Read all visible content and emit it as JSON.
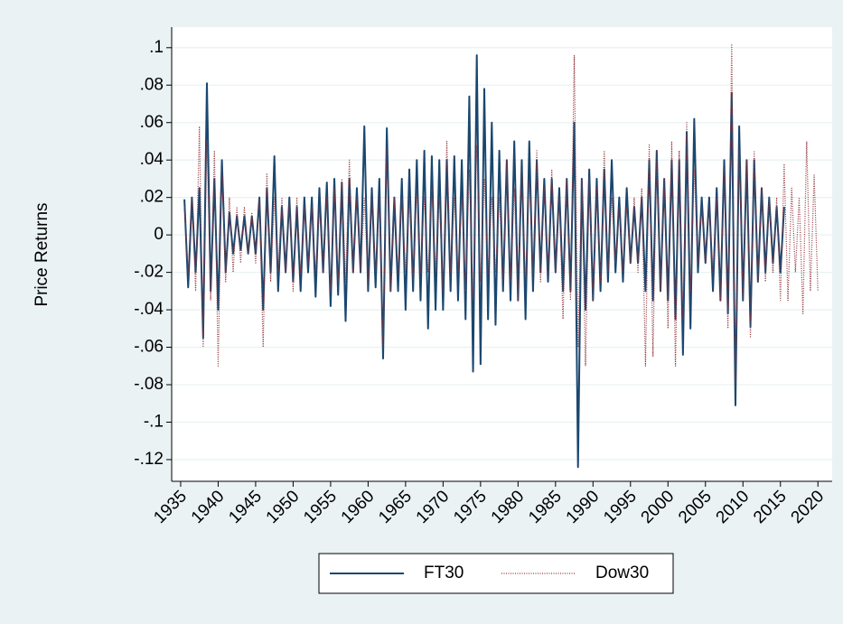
{
  "chart_data": {
    "type": "line",
    "y_label": "Price Returns",
    "xlim": [
      1933.8,
      2021.9
    ],
    "xticks": [
      1935,
      1940,
      1945,
      1950,
      1955,
      1960,
      1965,
      1970,
      1975,
      1980,
      1985,
      1990,
      1995,
      2000,
      2005,
      2010,
      2015,
      2020
    ],
    "ylim": [
      -0.1316,
      0.111
    ],
    "yticks": [
      {
        "value": 0.1,
        "label": ".1"
      },
      {
        "value": 0.08,
        "label": ".08"
      },
      {
        "value": 0.06,
        "label": ".06"
      },
      {
        "value": 0.04,
        "label": ".04"
      },
      {
        "value": 0.02,
        "label": ".02"
      },
      0,
      {
        "value": -0.02,
        "label": "-.02"
      },
      {
        "value": -0.04,
        "label": "-.04"
      },
      {
        "value": -0.06,
        "label": "-.06"
      },
      {
        "value": -0.08,
        "label": "-.08"
      },
      {
        "value": -0.1,
        "label": "-.1"
      },
      {
        "value": -0.12,
        "label": "-.12"
      }
    ],
    "grid": true,
    "legend_position": "bottom",
    "x": [
      1935.5,
      1936,
      1936.5,
      1937,
      1937.5,
      1938,
      1938.5,
      1939,
      1939.5,
      1940,
      1940.5,
      1941,
      1941.5,
      1942,
      1942.5,
      1943,
      1943.5,
      1944,
      1944.5,
      1945,
      1945.5,
      1946,
      1946.5,
      1947,
      1947.5,
      1948,
      1948.5,
      1949,
      1949.5,
      1950,
      1950.5,
      1951,
      1951.5,
      1952,
      1952.5,
      1953,
      1953.5,
      1954,
      1954.5,
      1955,
      1955.5,
      1956,
      1956.5,
      1957,
      1957.5,
      1958,
      1958.5,
      1959,
      1959.5,
      1960,
      1960.5,
      1961,
      1961.5,
      1962,
      1962.5,
      1963,
      1963.5,
      1964,
      1964.5,
      1965,
      1965.5,
      1966,
      1966.5,
      1967,
      1967.5,
      1968,
      1968.5,
      1969,
      1969.5,
      1970,
      1970.5,
      1971,
      1971.5,
      1972,
      1972.5,
      1973,
      1973.5,
      1974,
      1974.5,
      1975,
      1975.5,
      1976,
      1976.5,
      1977,
      1977.5,
      1978,
      1978.5,
      1979,
      1979.5,
      1980,
      1980.5,
      1981,
      1981.5,
      1982,
      1982.5,
      1983,
      1983.5,
      1984,
      1984.5,
      1985,
      1985.5,
      1986,
      1986.5,
      1987,
      1987.5,
      1988,
      1988.5,
      1989,
      1989.5,
      1990,
      1990.5,
      1991,
      1991.5,
      1992,
      1992.5,
      1993,
      1993.5,
      1994,
      1994.5,
      1995,
      1995.5,
      1996,
      1996.5,
      1997,
      1997.5,
      1998,
      1998.5,
      1999,
      1999.5,
      2000,
      2000.5,
      2001,
      2001.5,
      2002,
      2002.5,
      2003,
      2003.5,
      2004,
      2004.5,
      2005,
      2005.5,
      2006,
      2006.5,
      2007,
      2007.5,
      2008,
      2008.5,
      2009,
      2009.5,
      2010,
      2010.5,
      2011,
      2011.5,
      2012,
      2012.5,
      2013,
      2013.5,
      2014,
      2014.5,
      2015,
      2015.5,
      2016,
      2016.5,
      2017,
      2017.5,
      2018,
      2018.5,
      2019,
      2019.5,
      2020
    ],
    "series": [
      {
        "name": "FT30",
        "color": "#1a476f",
        "dashed": false,
        "values": [
          0.019,
          -0.028,
          0.02,
          -0.02,
          0.025,
          -0.055,
          0.081,
          -0.03,
          0.03,
          -0.04,
          0.04,
          -0.02,
          0.012,
          -0.01,
          0.01,
          -0.008,
          0.01,
          -0.01,
          0.01,
          -0.01,
          0.02,
          -0.04,
          0.025,
          -0.02,
          0.042,
          -0.03,
          0.015,
          -0.02,
          0.02,
          -0.025,
          0.015,
          -0.03,
          0.02,
          -0.02,
          0.02,
          -0.033,
          0.025,
          -0.02,
          0.028,
          -0.038,
          0.03,
          -0.032,
          0.028,
          -0.046,
          0.03,
          -0.02,
          0.025,
          -0.02,
          0.058,
          -0.03,
          0.025,
          -0.028,
          0.03,
          -0.066,
          0.057,
          -0.03,
          0.02,
          -0.03,
          0.03,
          -0.04,
          0.035,
          -0.03,
          0.04,
          -0.035,
          0.045,
          -0.05,
          0.042,
          -0.04,
          0.04,
          -0.04,
          0.04,
          -0.03,
          0.042,
          -0.035,
          0.04,
          -0.045,
          0.074,
          -0.073,
          0.096,
          -0.069,
          0.078,
          -0.045,
          0.06,
          -0.048,
          0.045,
          -0.03,
          0.04,
          -0.035,
          0.05,
          -0.035,
          0.04,
          -0.045,
          0.05,
          -0.03,
          0.04,
          -0.02,
          0.03,
          -0.025,
          0.03,
          -0.02,
          0.025,
          -0.03,
          0.03,
          -0.03,
          0.06,
          -0.124,
          0.03,
          -0.04,
          0.035,
          -0.035,
          0.03,
          -0.03,
          0.035,
          -0.025,
          0.04,
          -0.02,
          0.02,
          -0.025,
          0.025,
          -0.015,
          0.015,
          -0.015,
          0.02,
          -0.03,
          0.04,
          -0.035,
          0.045,
          -0.03,
          0.03,
          -0.035,
          0.04,
          -0.045,
          0.04,
          -0.064,
          0.055,
          -0.05,
          0.062,
          -0.02,
          0.02,
          -0.015,
          0.02,
          -0.03,
          0.025,
          -0.035,
          0.04,
          -0.042,
          0.076,
          -0.091,
          0.058,
          -0.035,
          0.04,
          -0.049,
          0.04,
          -0.025,
          0.025,
          -0.02,
          0.02,
          -0.015,
          0.015,
          -0.02,
          0.015,
          null,
          null,
          null,
          null,
          null,
          null,
          null,
          null,
          null
        ]
      },
      {
        "name": "Dow30",
        "color": "#90353b",
        "dashed": true,
        "values": [
          0.015,
          -0.02,
          0.02,
          -0.03,
          0.058,
          -0.06,
          0.05,
          -0.035,
          0.045,
          -0.07,
          0.035,
          -0.025,
          0.02,
          -0.02,
          0.015,
          -0.015,
          0.015,
          -0.01,
          0.012,
          -0.015,
          0.02,
          -0.06,
          0.033,
          -0.025,
          0.02,
          -0.02,
          0.02,
          -0.02,
          0.018,
          -0.03,
          0.02,
          -0.02,
          0.015,
          -0.015,
          0.015,
          -0.02,
          0.015,
          -0.02,
          0.02,
          -0.03,
          0.025,
          -0.025,
          0.03,
          -0.025,
          0.04,
          -0.02,
          0.02,
          -0.02,
          0.02,
          -0.025,
          0.02,
          -0.02,
          0.02,
          -0.06,
          0.045,
          -0.03,
          0.02,
          -0.02,
          0.02,
          -0.02,
          0.02,
          -0.025,
          0.025,
          -0.02,
          0.02,
          -0.02,
          0.025,
          -0.02,
          0.02,
          -0.03,
          0.05,
          -0.02,
          0.02,
          -0.02,
          0.02,
          -0.03,
          0.035,
          -0.035,
          0.048,
          -0.025,
          0.03,
          -0.02,
          0.02,
          -0.02,
          0.02,
          -0.025,
          0.04,
          -0.025,
          0.025,
          -0.035,
          0.035,
          -0.025,
          0.03,
          -0.02,
          0.045,
          -0.025,
          0.025,
          -0.02,
          0.035,
          -0.02,
          0.02,
          -0.045,
          0.03,
          -0.035,
          0.096,
          -0.06,
          0.03,
          -0.07,
          0.03,
          -0.035,
          0.025,
          -0.025,
          0.045,
          -0.02,
          0.02,
          -0.015,
          0.015,
          -0.02,
          0.015,
          -0.015,
          0.02,
          -0.02,
          0.025,
          -0.07,
          0.048,
          -0.065,
          0.045,
          -0.03,
          0.03,
          -0.05,
          0.05,
          -0.07,
          0.045,
          -0.045,
          0.06,
          -0.03,
          0.035,
          -0.015,
          0.015,
          -0.015,
          0.015,
          -0.02,
          0.02,
          -0.035,
          0.035,
          -0.05,
          0.102,
          -0.08,
          0.045,
          -0.035,
          0.04,
          -0.055,
          0.045,
          -0.025,
          0.025,
          -0.025,
          0.02,
          -0.02,
          0.02,
          -0.035,
          0.038,
          -0.035,
          0.025,
          -0.02,
          0.02,
          -0.042,
          0.05,
          -0.03,
          0.032,
          -0.03
        ]
      }
    ]
  }
}
